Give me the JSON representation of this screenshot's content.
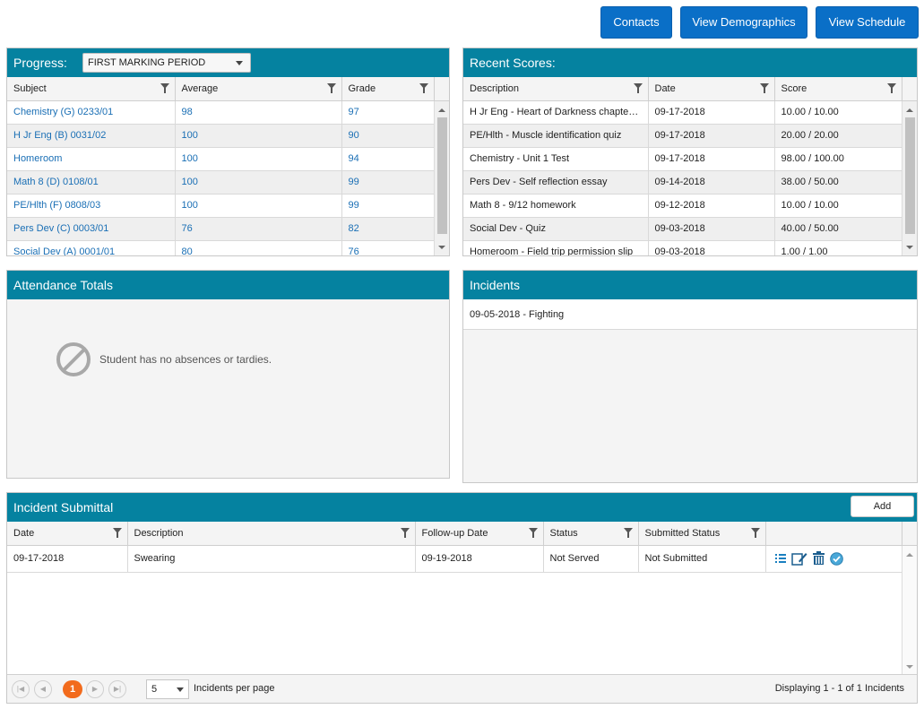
{
  "top_buttons": {
    "contacts": "Contacts",
    "demographics": "View Demographics",
    "schedule": "View Schedule"
  },
  "progress": {
    "title": "Progress:",
    "period": "FIRST MARKING PERIOD",
    "columns": [
      "Subject",
      "Average",
      "Grade"
    ],
    "rows": [
      {
        "subject": "Chemistry (G) 0233/01",
        "average": "98",
        "grade": "97"
      },
      {
        "subject": "H Jr Eng (B) 0031/02",
        "average": "100",
        "grade": "90"
      },
      {
        "subject": "Homeroom",
        "average": "100",
        "grade": "94"
      },
      {
        "subject": "Math 8 (D) 0108/01",
        "average": "100",
        "grade": "99"
      },
      {
        "subject": "PE/Hlth (F) 0808/03",
        "average": "100",
        "grade": "99"
      },
      {
        "subject": "Pers Dev (C) 0003/01",
        "average": "76",
        "grade": "82"
      },
      {
        "subject": "Social Dev (A) 0001/01",
        "average": "80",
        "grade": "76"
      }
    ]
  },
  "recent_scores": {
    "title": "Recent Scores:",
    "columns": [
      "Description",
      "Date",
      "Score"
    ],
    "rows": [
      {
        "description": "H Jr Eng - Heart of Darkness chapter ...",
        "date": "09-17-2018",
        "score": "10.00 / 10.00"
      },
      {
        "description": "PE/Hlth - Muscle identification quiz",
        "date": "09-17-2018",
        "score": "20.00 / 20.00"
      },
      {
        "description": "Chemistry - Unit 1 Test",
        "date": "09-17-2018",
        "score": "98.00 / 100.00"
      },
      {
        "description": "Pers Dev - Self reflection essay",
        "date": "09-14-2018",
        "score": "38.00 / 50.00"
      },
      {
        "description": "Math 8 - 9/12 homework",
        "date": "09-12-2018",
        "score": "10.00 / 10.00"
      },
      {
        "description": "Social Dev - Quiz",
        "date": "09-03-2018",
        "score": "40.00 / 50.00"
      },
      {
        "description": "Homeroom - Field trip permission slip",
        "date": "09-03-2018",
        "score": "1.00 / 1.00"
      }
    ]
  },
  "attendance": {
    "title": "Attendance Totals",
    "empty_message": "Student has no absences or tardies."
  },
  "incidents": {
    "title": "Incidents",
    "items": [
      "09-05-2018 - Fighting"
    ]
  },
  "incident_submittal": {
    "title": "Incident Submittal",
    "add_label": "Add",
    "columns": [
      "Date",
      "Description",
      "Follow-up Date",
      "Status",
      "Submitted Status"
    ],
    "rows": [
      {
        "date": "09-17-2018",
        "description": "Swearing",
        "followup": "09-19-2018",
        "status": "Not Served",
        "submitted": "Not Submitted"
      }
    ],
    "pager": {
      "current_page": "1",
      "per_page": "5",
      "per_page_label": "Incidents per page",
      "displaying": "Displaying 1 - 1 of 1 Incidents"
    }
  },
  "colors": {
    "header_teal": "#0582a0",
    "button_blue": "#0a6fc7",
    "link_blue": "#1a6fb5",
    "pager_orange": "#f26b1d"
  }
}
